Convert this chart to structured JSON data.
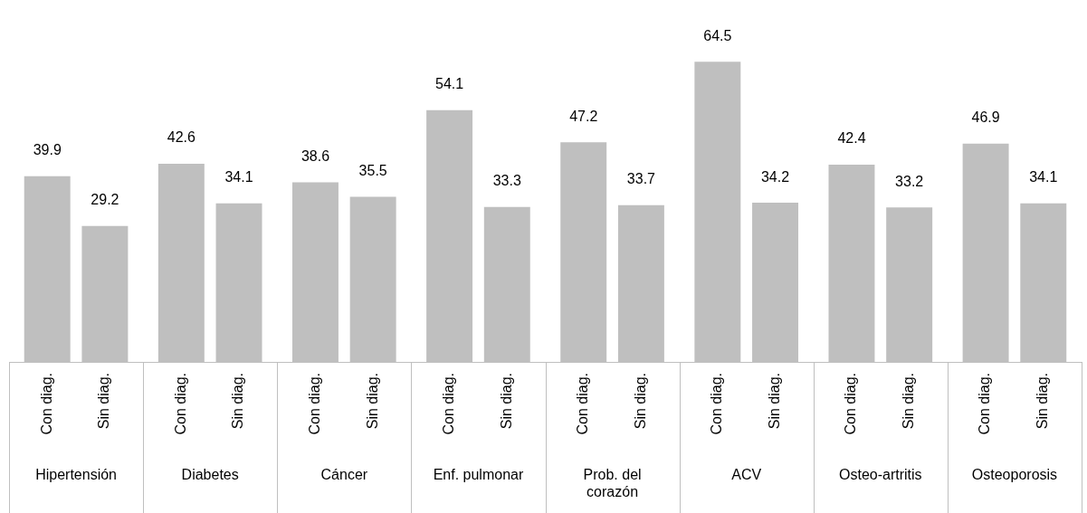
{
  "chart_data": {
    "type": "bar",
    "categories": [
      "Hipertensión",
      "Diabetes",
      "Cáncer",
      "Enf. pulmonar",
      "Prob. del corazón",
      "ACV",
      "Osteo-artritis",
      "Osteoporosis"
    ],
    "series": [
      {
        "name": "Con diag.",
        "color": "#bfbfbf",
        "values": [
          39.9,
          42.6,
          38.6,
          54.1,
          47.2,
          64.5,
          42.4,
          46.9
        ]
      },
      {
        "name": "Sin diag.",
        "color": "#bfbfbf",
        "values": [
          29.2,
          34.1,
          35.5,
          33.3,
          33.7,
          34.2,
          33.2,
          34.1
        ]
      }
    ],
    "data_labels": true,
    "legend": false
  }
}
